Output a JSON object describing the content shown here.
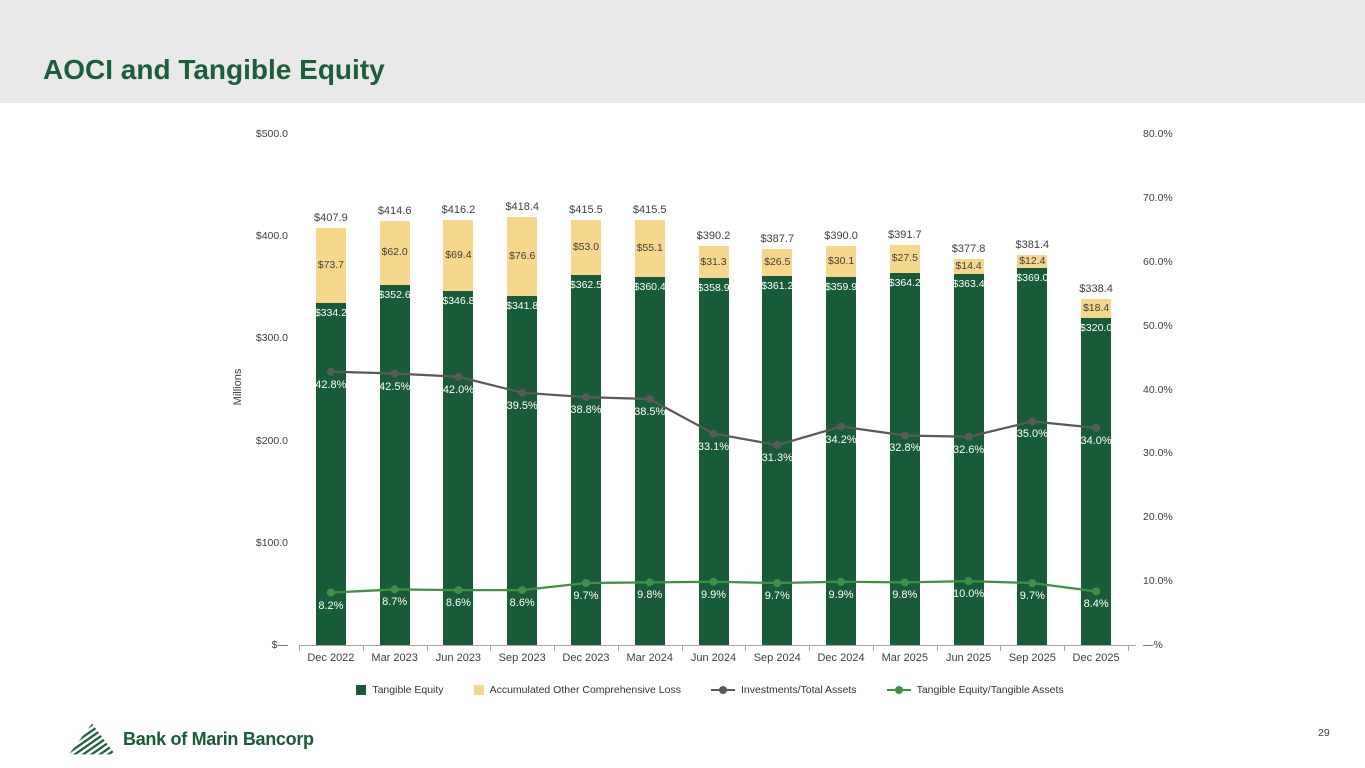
{
  "slide": {
    "title": "AOCI and Tangible Equity",
    "page_number": "29",
    "footer_logo_text": "Bank of Marin Bancorp"
  },
  "chart_data": {
    "type": "bar",
    "title": "AOCI and Tangible Equity",
    "categories": [
      "Dec 2022",
      "Mar 2023",
      "Jun 2023",
      "Sep 2023",
      "Dec 2023",
      "Mar 2024",
      "Jun 2024",
      "Sep 2024",
      "Dec 2024",
      "Mar 2025",
      "Jun 2025",
      "Sep 2025",
      "Dec 2025"
    ],
    "series": [
      {
        "name": "Tangible Equity",
        "type": "bar",
        "color": "#185b38",
        "label_color": "#ffffff",
        "values": [
          334.2,
          352.6,
          346.8,
          341.8,
          362.5,
          360.4,
          358.9,
          361.2,
          359.9,
          364.2,
          363.4,
          369.0,
          320.0
        ]
      },
      {
        "name": "Accumulated Other Comprehensive Loss",
        "type": "bar",
        "color": "#f6d78b",
        "label_color": "#3f3f3f",
        "values": [
          73.7,
          62.0,
          69.4,
          76.6,
          53.0,
          55.1,
          31.3,
          26.5,
          30.1,
          27.5,
          14.4,
          12.4,
          18.4
        ]
      },
      {
        "name": "Investments/Total Assets",
        "type": "line",
        "color": "#595959",
        "label_color": "#ffffff",
        "values": [
          42.8,
          42.5,
          42.0,
          39.5,
          38.8,
          38.5,
          33.1,
          31.3,
          34.2,
          32.8,
          32.6,
          35.0,
          34.0
        ]
      },
      {
        "name": "Tangible Equity/Tangible Assets",
        "type": "line",
        "color": "#3f9044",
        "label_color": "#ffffff",
        "values": [
          8.2,
          8.7,
          8.6,
          8.6,
          9.7,
          9.8,
          9.9,
          9.7,
          9.9,
          9.8,
          10.0,
          9.7,
          8.4
        ]
      }
    ],
    "totals": [
      407.9,
      414.6,
      416.2,
      418.4,
      415.5,
      415.5,
      390.2,
      387.7,
      390.0,
      391.7,
      377.8,
      381.4,
      338.4
    ],
    "value_prefix": "$",
    "left_axis": {
      "title": "Millions",
      "min": 0,
      "max": 500,
      "ticks": [
        "$500.0",
        "$400.0",
        "$300.0",
        "$200.0",
        "$100.0",
        "$—"
      ]
    },
    "right_axis": {
      "min": 0,
      "max": 80,
      "ticks": [
        "80.0%",
        "70.0%",
        "60.0%",
        "50.0%",
        "40.0%",
        "30.0%",
        "20.0%",
        "10.0%",
        "—%"
      ]
    },
    "legend_position": "bottom",
    "grid": false
  }
}
